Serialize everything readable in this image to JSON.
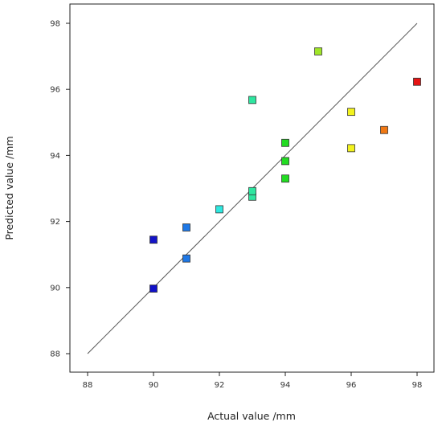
{
  "chart_data": {
    "type": "scatter",
    "xlabel": "Actual value /mm",
    "ylabel": "Predicted value /mm",
    "xlim": [
      88,
      98
    ],
    "ylim": [
      88,
      98
    ],
    "x_ticks": [
      "88",
      "90",
      "92",
      "94",
      "96",
      "98"
    ],
    "y_ticks": [
      "88",
      "90",
      "92",
      "94",
      "96",
      "98"
    ],
    "grid": false,
    "reference_line": {
      "from": [
        88,
        88
      ],
      "to": [
        98,
        98
      ],
      "color": "#555555"
    },
    "marker": "square",
    "points": [
      {
        "x": 90,
        "y": 89.97,
        "color": "#1010c8"
      },
      {
        "x": 90,
        "y": 91.45,
        "color": "#1414c8"
      },
      {
        "x": 91,
        "y": 90.88,
        "color": "#1e78e6"
      },
      {
        "x": 91,
        "y": 91.82,
        "color": "#1e78e6"
      },
      {
        "x": 92,
        "y": 92.37,
        "color": "#2ee8e0"
      },
      {
        "x": 93,
        "y": 92.75,
        "color": "#2ee6a0"
      },
      {
        "x": 93,
        "y": 92.92,
        "color": "#2ee6a0"
      },
      {
        "x": 93,
        "y": 95.68,
        "color": "#2ee6a0"
      },
      {
        "x": 94,
        "y": 93.3,
        "color": "#22dc22"
      },
      {
        "x": 94,
        "y": 93.83,
        "color": "#22dc22"
      },
      {
        "x": 94,
        "y": 94.38,
        "color": "#22dc22"
      },
      {
        "x": 95,
        "y": 97.15,
        "color": "#a0e628"
      },
      {
        "x": 96,
        "y": 94.22,
        "color": "#f2f21e"
      },
      {
        "x": 96,
        "y": 95.32,
        "color": "#f2f21e"
      },
      {
        "x": 97,
        "y": 94.77,
        "color": "#f07814"
      },
      {
        "x": 98,
        "y": 96.23,
        "color": "#e61414"
      }
    ]
  }
}
